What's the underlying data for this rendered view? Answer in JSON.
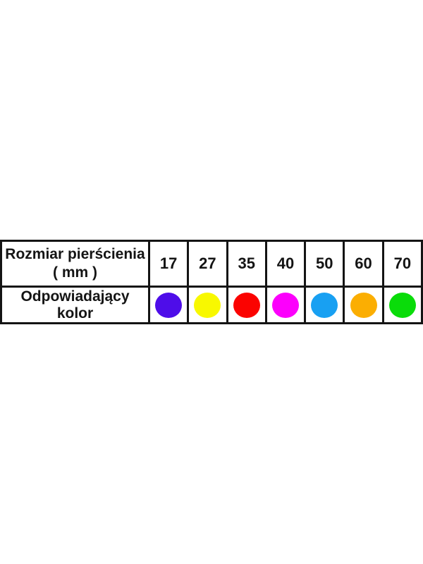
{
  "chart_data": {
    "type": "table",
    "row_headers": [
      "Rozmiar pierścienia ( mm )",
      "Odpowiadający kolor"
    ],
    "sizes_mm": [
      17,
      27,
      35,
      40,
      50,
      60,
      70
    ],
    "colors": [
      {
        "name": "violet",
        "hex": "#4E0DE9"
      },
      {
        "name": "yellow",
        "hex": "#F8F800"
      },
      {
        "name": "red",
        "hex": "#FB0301"
      },
      {
        "name": "magenta",
        "hex": "#FC00FC"
      },
      {
        "name": "blue",
        "hex": "#18A0F2"
      },
      {
        "name": "orange",
        "hex": "#FBAE02"
      },
      {
        "name": "green",
        "hex": "#0ADC0A"
      }
    ]
  },
  "header_cell": {
    "line1": "Rozmiar pierścienia",
    "line2": "( mm )"
  },
  "color_row_label": "Odpowiadający kolor",
  "style": {
    "border_color": "#141414",
    "text_color": "#141414",
    "background": "#ffffff"
  }
}
